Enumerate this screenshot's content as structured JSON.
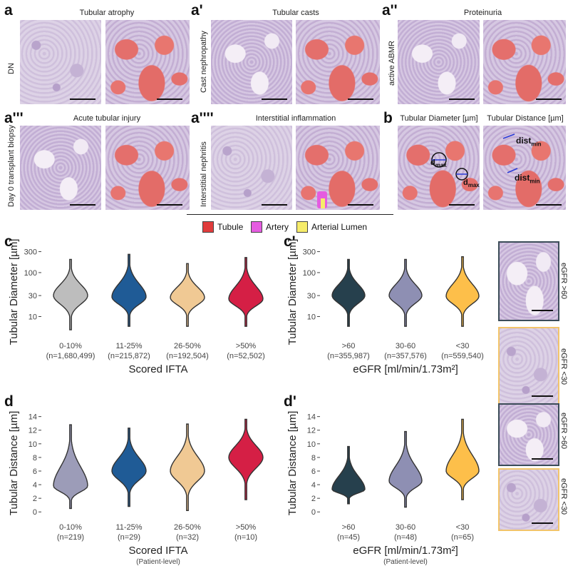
{
  "panels": {
    "a": {
      "letter": "a",
      "title": "Tubular atrophy",
      "side_label": "DN"
    },
    "a1": {
      "letter": "a'",
      "title": "Tubular casts",
      "side_label": "Cast nephropathy"
    },
    "a2": {
      "letter": "a''",
      "title": "Proteinuria",
      "side_label": "active ABMR"
    },
    "a3": {
      "letter": "a'''",
      "title": "Acute tubular injury",
      "side_label": "Day 0 transplant biopsy"
    },
    "a4": {
      "letter": "a''''",
      "title": "Interstitial inflammation",
      "side_label": "Interstitial nephritis"
    },
    "b": {
      "letter": "b",
      "title_left": "Tubular Diameter [µm]",
      "title_right": "Tubular Distance [µm]",
      "annot_dmax": "d",
      "annot_dmax_sub": "max",
      "annot_dist": "dist",
      "annot_dist_sub": "min"
    }
  },
  "legend": [
    {
      "label": "Tubule",
      "color": "#e03c3c"
    },
    {
      "label": "Artery",
      "color": "#e55ce0"
    },
    {
      "label": "Arterial Lumen",
      "color": "#f6ec6a"
    }
  ],
  "thumbs": [
    {
      "label": "eGFR >60",
      "border": "#3b4c58"
    },
    {
      "label": "eGFR <30",
      "border": "#f2c46a"
    },
    {
      "label": "eGFR >60",
      "border": "#3b4c58"
    },
    {
      "label": "eGFR <30",
      "border": "#f2c46a"
    }
  ],
  "chart_data": [
    {
      "id": "c",
      "letter": "c",
      "type": "violin",
      "log_y": true,
      "ylabel": "Tubular Diameter [µm]",
      "xlabel": "Scored IFTA",
      "xsub": "",
      "yticks": [
        10,
        30,
        100,
        300
      ],
      "ylim": [
        4,
        330
      ],
      "categories": [
        "0-10%",
        "11-25%",
        "26-50%",
        ">50%"
      ],
      "counts": [
        "(n=1,680,499)",
        "(n=215,872)",
        "(n=192,504)",
        "(n=52,502)"
      ],
      "colors": [
        "#bdbdbd",
        "#1f5b96",
        "#f0c994",
        "#d51f45"
      ],
      "medians": [
        30,
        28,
        27,
        25
      ],
      "ranges": [
        [
          5,
          200
        ],
        [
          6,
          260
        ],
        [
          6,
          160
        ],
        [
          6,
          220
        ]
      ]
    },
    {
      "id": "c1",
      "letter": "c'",
      "type": "violin",
      "log_y": true,
      "ylabel": "Tubular Diameter [µm]",
      "xlabel": "eGFR [ml/min/1.73m²]",
      "xsub": "",
      "yticks": [
        10,
        30,
        100,
        300
      ],
      "ylim": [
        4,
        330
      ],
      "categories": [
        ">60",
        "30-60",
        "<30"
      ],
      "counts": [
        "(n=355,987)",
        "(n=357,576)",
        "(n=559,540)"
      ],
      "colors": [
        "#26404d",
        "#8e8fb3",
        "#fdbf4a"
      ],
      "medians": [
        30,
        30,
        29
      ],
      "ranges": [
        [
          6,
          200
        ],
        [
          6,
          200
        ],
        [
          6,
          230
        ]
      ]
    },
    {
      "id": "d",
      "letter": "d",
      "type": "violin",
      "log_y": false,
      "ylabel": "Tubular Distance [µm]",
      "xlabel": "Scored IFTA",
      "xsub": "(Patient-level)",
      "yticks": [
        0,
        2,
        4,
        6,
        8,
        10,
        12,
        14
      ],
      "ylim": [
        -0.5,
        14.8
      ],
      "categories": [
        "0-10%",
        "11-25%",
        "26-50%",
        ">50%"
      ],
      "counts": [
        "(n=219)",
        "(n=29)",
        "(n=32)",
        "(n=10)"
      ],
      "colors": [
        "#9c9cb8",
        "#1f5b96",
        "#f0c994",
        "#d51f45"
      ],
      "medians": [
        3.8,
        6.0,
        6.0,
        8.0
      ],
      "ranges": [
        [
          0.5,
          12.8
        ],
        [
          0.8,
          12.3
        ],
        [
          0.2,
          12.9
        ],
        [
          1.8,
          13.6
        ]
      ]
    },
    {
      "id": "d1",
      "letter": "d'",
      "type": "violin",
      "log_y": false,
      "ylabel": "Tubular Distance [µm]",
      "xlabel": "eGFR [ml/min/1.73m²]",
      "xsub": "(Patient-level)",
      "yticks": [
        0,
        2,
        4,
        6,
        8,
        10,
        12,
        14
      ],
      "ylim": [
        -0.5,
        14.8
      ],
      "categories": [
        ">60",
        "30-60",
        "<30"
      ],
      "counts": [
        "(n=45)",
        "(n=48)",
        "(n=65)"
      ],
      "colors": [
        "#26404d",
        "#8e8fb3",
        "#fdbf4a"
      ],
      "medians": [
        3.3,
        4.5,
        6.0
      ],
      "ranges": [
        [
          1.2,
          9.6
        ],
        [
          0.7,
          11.8
        ],
        [
          1.8,
          13.6
        ]
      ]
    }
  ]
}
